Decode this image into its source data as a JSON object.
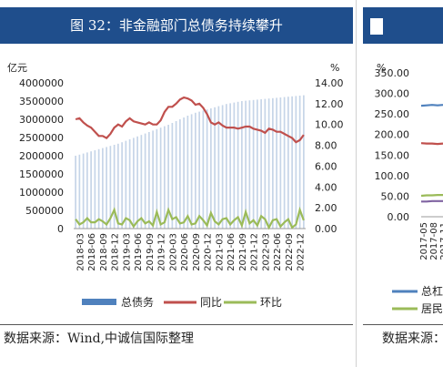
{
  "main_chart": {
    "title": "图 32：非金融部门总债务持续攀升",
    "source": "数据来源：Wind,中诚信国际整理",
    "chart_data": {
      "type": "bar+line",
      "left_axis_unit": "亿元",
      "right_axis_unit": "%",
      "ylim_left": [
        0,
        4000000
      ],
      "ylim_right": [
        0,
        14
      ],
      "left_ticks": [
        "4000000",
        "3500000",
        "3000000",
        "2500000",
        "2000000",
        "1500000",
        "1000000",
        "500000",
        "0"
      ],
      "right_ticks": [
        "14.00",
        "12.00",
        "10.00",
        "8.00",
        "6.00",
        "4.00",
        "2.00",
        "0.00"
      ],
      "x_tick_labels": [
        "2018-03",
        "2018-06",
        "2018-09",
        "2018-12",
        "2019-03",
        "2019-06",
        "2019-09",
        "2019-12",
        "2020-03",
        "2020-06",
        "2020-09",
        "2020-12",
        "2021-03",
        "2021-06",
        "2021-09",
        "2021-12",
        "2022-03",
        "2022-06",
        "2022-09",
        "2022-12"
      ],
      "legend_position": "bottom",
      "colors": {
        "bar": "#4f81bd",
        "yoy": "#c0504d",
        "mom": "#9bbb59"
      },
      "series": [
        {
          "name": "总债务",
          "axis": "left",
          "kind": "bar",
          "values": [
            2000000,
            2030000,
            2060000,
            2090000,
            2120000,
            2150000,
            2180000,
            2210000,
            2240000,
            2270000,
            2300000,
            2330000,
            2370000,
            2410000,
            2450000,
            2490000,
            2530000,
            2570000,
            2610000,
            2650000,
            2690000,
            2730000,
            2770000,
            2810000,
            2850000,
            2900000,
            2950000,
            3000000,
            3050000,
            3100000,
            3140000,
            3180000,
            3210000,
            3240000,
            3270000,
            3300000,
            3330000,
            3360000,
            3390000,
            3420000,
            3440000,
            3460000,
            3480000,
            3500000,
            3510000,
            3520000,
            3530000,
            3540000,
            3550000,
            3560000,
            3570000,
            3580000,
            3590000,
            3600000,
            3610000,
            3620000,
            3630000,
            3640000,
            3650000,
            3660000
          ]
        },
        {
          "name": "同比",
          "axis": "right",
          "kind": "line",
          "values": [
            10.5,
            10.6,
            10.2,
            9.9,
            9.7,
            9.3,
            8.9,
            8.9,
            8.7,
            9.1,
            9.7,
            10.0,
            9.8,
            10.3,
            10.6,
            10.3,
            10.2,
            10.1,
            10.0,
            10.2,
            10.0,
            10.0,
            10.4,
            11.2,
            11.7,
            11.7,
            12.0,
            12.4,
            12.6,
            12.5,
            12.3,
            11.9,
            12.0,
            11.6,
            11.0,
            10.2,
            10.0,
            10.2,
            9.9,
            9.7,
            9.7,
            9.7,
            9.6,
            9.7,
            9.8,
            9.8,
            9.6,
            9.5,
            9.4,
            9.2,
            9.6,
            9.5,
            9.3,
            9.3,
            9.1,
            8.9,
            8.7,
            8.3,
            8.5,
            9.0
          ]
        },
        {
          "name": "环比",
          "axis": "right",
          "kind": "line",
          "values": [
            0.9,
            0.4,
            0.6,
            1.0,
            0.6,
            0.6,
            0.9,
            0.7,
            0.4,
            1.0,
            1.8,
            0.5,
            0.4,
            1.0,
            0.8,
            0.2,
            0.7,
            1.0,
            0.5,
            0.7,
            0.3,
            1.6,
            0.4,
            0.6,
            1.8,
            0.9,
            1.1,
            0.5,
            0.6,
            1.2,
            0.4,
            0.5,
            1.2,
            0.8,
            0.3,
            1.5,
            0.7,
            0.4,
            0.9,
            1.0,
            0.4,
            0.8,
            1.1,
            0.3,
            1.6,
            0.5,
            0.8,
            0.3,
            1.2,
            0.9,
            0.1,
            0.8,
            0.9,
            0.2,
            0.6,
            0.9,
            0.1,
            0.4,
            1.8,
            0.8
          ]
        }
      ]
    }
  },
  "side_chart": {
    "source_prefix": "数据来源：",
    "chart_data": {
      "type": "line",
      "left_axis_unit": "%",
      "ticks": [
        "350.00",
        "300.00",
        "250.00",
        "200.00",
        "150.00",
        "100.00",
        "50.00",
        "0.00"
      ],
      "ylim": [
        0,
        350
      ],
      "x_tick_labels": [
        "2017-05",
        "2017-08",
        "2017-11"
      ],
      "series": [
        {
          "name": "总杠",
          "color": "#4f81bd",
          "values": [
            270,
            271,
            272,
            271,
            272
          ]
        },
        {
          "name": "",
          "color": "#c0504d",
          "values": [
            179,
            178,
            178,
            177,
            178
          ]
        },
        {
          "name": "",
          "color": "#9bbb59",
          "values": [
            51,
            52,
            52,
            53,
            53
          ]
        },
        {
          "name": "",
          "color": "#8064a2",
          "values": [
            37,
            37,
            38,
            38,
            38
          ]
        }
      ],
      "legend_entries": [
        "总杠",
        "居民"
      ]
    }
  }
}
